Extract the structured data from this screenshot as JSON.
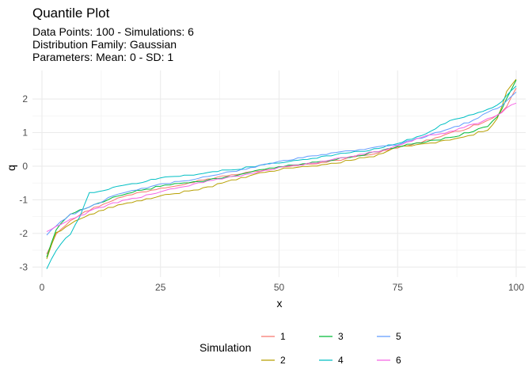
{
  "chart_data": {
    "type": "line",
    "title": "Quantile Plot",
    "subtitle": [
      "Data Points: 100 - Simulations: 6",
      "Distribution Family: Gaussian",
      "Parameters: Mean: 0 - SD: 1"
    ],
    "xlabel": "x",
    "ylabel": "q",
    "xlim": [
      -2,
      102
    ],
    "ylim": [
      -3.3,
      2.85
    ],
    "xticks": [
      0,
      25,
      50,
      75,
      100
    ],
    "yticks": [
      -3,
      -2,
      -1,
      0,
      1,
      2
    ],
    "grid": true,
    "legend_title": "Simulation",
    "legend_position": "bottom",
    "series": [
      {
        "name": "1",
        "color": "#F8766D",
        "anchors": [
          [
            1,
            -2.6
          ],
          [
            3,
            -2.0
          ],
          [
            6,
            -1.6
          ],
          [
            10,
            -1.3
          ],
          [
            15,
            -1.0
          ],
          [
            20,
            -0.8
          ],
          [
            25,
            -0.65
          ],
          [
            35,
            -0.38
          ],
          [
            50,
            -0.05
          ],
          [
            60,
            0.12
          ],
          [
            70,
            0.38
          ],
          [
            75,
            0.55
          ],
          [
            80,
            0.72
          ],
          [
            85,
            0.92
          ],
          [
            90,
            1.15
          ],
          [
            94,
            1.35
          ],
          [
            96,
            1.5
          ],
          [
            98,
            1.8
          ],
          [
            100,
            2.3
          ]
        ]
      },
      {
        "name": "2",
        "color": "#B79F00",
        "anchors": [
          [
            1,
            -2.75
          ],
          [
            3,
            -2.0
          ],
          [
            6,
            -1.7
          ],
          [
            10,
            -1.45
          ],
          [
            15,
            -1.2
          ],
          [
            20,
            -1.05
          ],
          [
            25,
            -0.9
          ],
          [
            35,
            -0.62
          ],
          [
            45,
            -0.25
          ],
          [
            50,
            -0.1
          ],
          [
            60,
            0.05
          ],
          [
            70,
            0.3
          ],
          [
            75,
            0.55
          ],
          [
            80,
            0.65
          ],
          [
            85,
            0.75
          ],
          [
            90,
            0.9
          ],
          [
            94,
            1.1
          ],
          [
            96,
            1.4
          ],
          [
            98,
            2.2
          ],
          [
            100,
            2.6
          ]
        ]
      },
      {
        "name": "3",
        "color": "#00BA38",
        "anchors": [
          [
            1,
            -2.7
          ],
          [
            3,
            -1.9
          ],
          [
            6,
            -1.4
          ],
          [
            10,
            -1.2
          ],
          [
            15,
            -0.95
          ],
          [
            20,
            -0.75
          ],
          [
            25,
            -0.6
          ],
          [
            35,
            -0.42
          ],
          [
            50,
            -0.02
          ],
          [
            60,
            0.15
          ],
          [
            70,
            0.4
          ],
          [
            75,
            0.58
          ],
          [
            80,
            0.7
          ],
          [
            85,
            0.82
          ],
          [
            90,
            1.0
          ],
          [
            94,
            1.2
          ],
          [
            96,
            1.45
          ],
          [
            98,
            2.0
          ],
          [
            100,
            2.55
          ]
        ]
      },
      {
        "name": "4",
        "color": "#00BFC4",
        "anchors": [
          [
            1,
            -3.05
          ],
          [
            3,
            -2.5
          ],
          [
            6,
            -2.0
          ],
          [
            8,
            -1.5
          ],
          [
            10,
            -0.8
          ],
          [
            15,
            -0.65
          ],
          [
            20,
            -0.5
          ],
          [
            25,
            -0.35
          ],
          [
            35,
            -0.2
          ],
          [
            50,
            0.1
          ],
          [
            60,
            0.3
          ],
          [
            70,
            0.5
          ],
          [
            75,
            0.68
          ],
          [
            80,
            0.9
          ],
          [
            85,
            1.3
          ],
          [
            90,
            1.5
          ],
          [
            94,
            1.7
          ],
          [
            96,
            1.8
          ],
          [
            98,
            2.1
          ],
          [
            100,
            2.4
          ]
        ]
      },
      {
        "name": "5",
        "color": "#619CFF",
        "anchors": [
          [
            1,
            -2.05
          ],
          [
            3,
            -1.75
          ],
          [
            6,
            -1.45
          ],
          [
            10,
            -1.2
          ],
          [
            15,
            -0.9
          ],
          [
            20,
            -0.7
          ],
          [
            25,
            -0.55
          ],
          [
            35,
            -0.32
          ],
          [
            50,
            0.15
          ],
          [
            60,
            0.35
          ],
          [
            70,
            0.55
          ],
          [
            75,
            0.65
          ],
          [
            80,
            0.85
          ],
          [
            85,
            1.1
          ],
          [
            90,
            1.3
          ],
          [
            94,
            1.6
          ],
          [
            96,
            1.7
          ],
          [
            98,
            1.95
          ],
          [
            100,
            2.2
          ]
        ]
      },
      {
        "name": "6",
        "color": "#F564E3",
        "anchors": [
          [
            1,
            -1.95
          ],
          [
            3,
            -1.8
          ],
          [
            6,
            -1.6
          ],
          [
            10,
            -1.35
          ],
          [
            15,
            -1.1
          ],
          [
            20,
            -0.95
          ],
          [
            25,
            -0.75
          ],
          [
            35,
            -0.45
          ],
          [
            50,
            -0.05
          ],
          [
            60,
            0.15
          ],
          [
            70,
            0.42
          ],
          [
            75,
            0.6
          ],
          [
            80,
            0.85
          ],
          [
            85,
            1.0
          ],
          [
            90,
            1.2
          ],
          [
            94,
            1.4
          ],
          [
            96,
            1.5
          ],
          [
            98,
            1.75
          ],
          [
            100,
            1.9
          ]
        ]
      }
    ]
  }
}
